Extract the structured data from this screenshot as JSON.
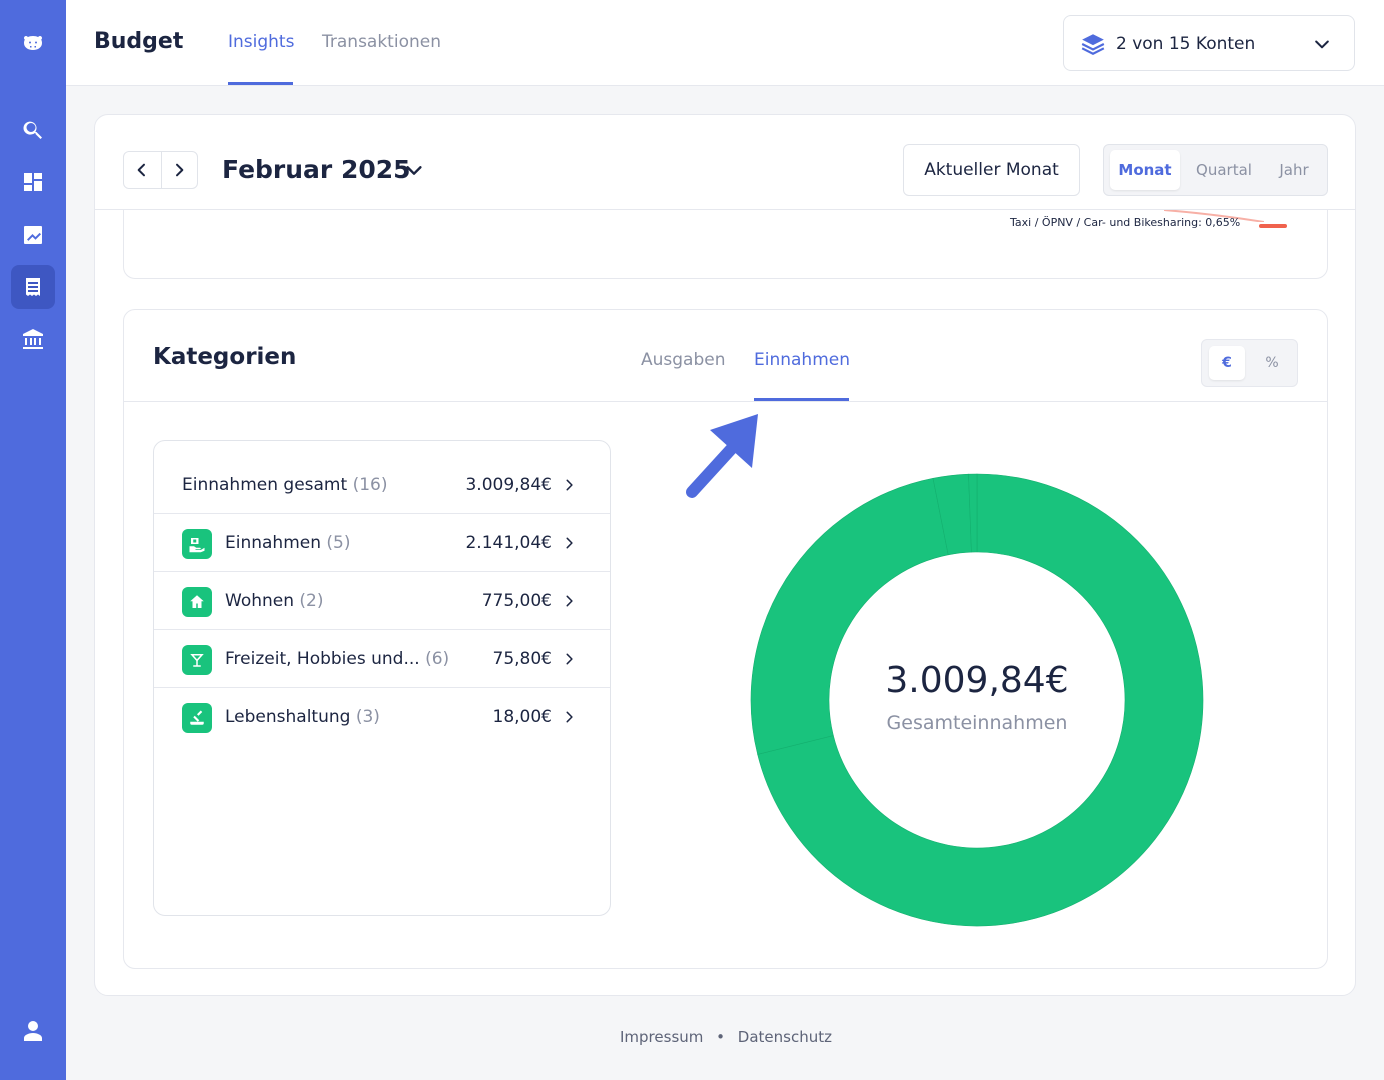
{
  "sidebar": {
    "icons": [
      "hippo-logo-icon",
      "search-icon",
      "dashboard-icon",
      "chart-line-icon",
      "budget-list-icon",
      "bank-icon",
      "user-icon"
    ],
    "active": "budget-list-icon"
  },
  "header": {
    "title": "Budget",
    "tabs": [
      {
        "label": "Insights",
        "active": true
      },
      {
        "label": "Transaktionen",
        "active": false
      }
    ],
    "accounts_label": "2 von 15 Konten"
  },
  "period": {
    "title": "Februar 2025",
    "current_button": "Aktueller Monat",
    "options": [
      {
        "label": "Monat",
        "active": true
      },
      {
        "label": "Quartal",
        "active": false
      },
      {
        "label": "Jahr",
        "active": false
      }
    ]
  },
  "previous_chart": {
    "label": "Taxi / ÖPNV / Car- und Bikesharing: 0,65%"
  },
  "categories": {
    "title": "Kategorien",
    "tabs": [
      {
        "label": "Ausgaben",
        "active": false
      },
      {
        "label": "Einnahmen",
        "active": true
      }
    ],
    "units": [
      {
        "label": "€",
        "active": true
      },
      {
        "label": "%",
        "active": false
      }
    ],
    "total": {
      "label": "Einnahmen gesamt",
      "count": "(16)",
      "value": "3.009,84€"
    },
    "rows": [
      {
        "label": "Einnahmen",
        "count": "(5)",
        "value": "2.141,04€",
        "icon": "income-icon"
      },
      {
        "label": "Wohnen",
        "count": "(2)",
        "value": "775,00€",
        "icon": "home-icon"
      },
      {
        "label": "Freizeit, Hobbies und...",
        "count": "(6)",
        "value": "75,80€",
        "icon": "cocktail-icon"
      },
      {
        "label": "Lebenshaltung",
        "count": "(3)",
        "value": "18,00€",
        "icon": "groceries-icon"
      }
    ],
    "donut_value": "3.009,84€",
    "donut_label": "Gesamteinnahmen",
    "donut_color": "#19c37d"
  },
  "chart_data": {
    "type": "pie",
    "categories": [
      "Einnahmen",
      "Wohnen",
      "Freizeit, Hobbies und...",
      "Lebenshaltung"
    ],
    "values": [
      2141.04,
      775.0,
      75.8,
      18.0
    ],
    "total": 3009.84
  },
  "footer": {
    "impressum": "Impressum",
    "separator": "•",
    "datenschutz": "Datenschutz"
  },
  "colors": {
    "accent": "#4f6bdd",
    "green": "#19c37d",
    "text": "#1c2541",
    "muted": "#8b91a3"
  }
}
